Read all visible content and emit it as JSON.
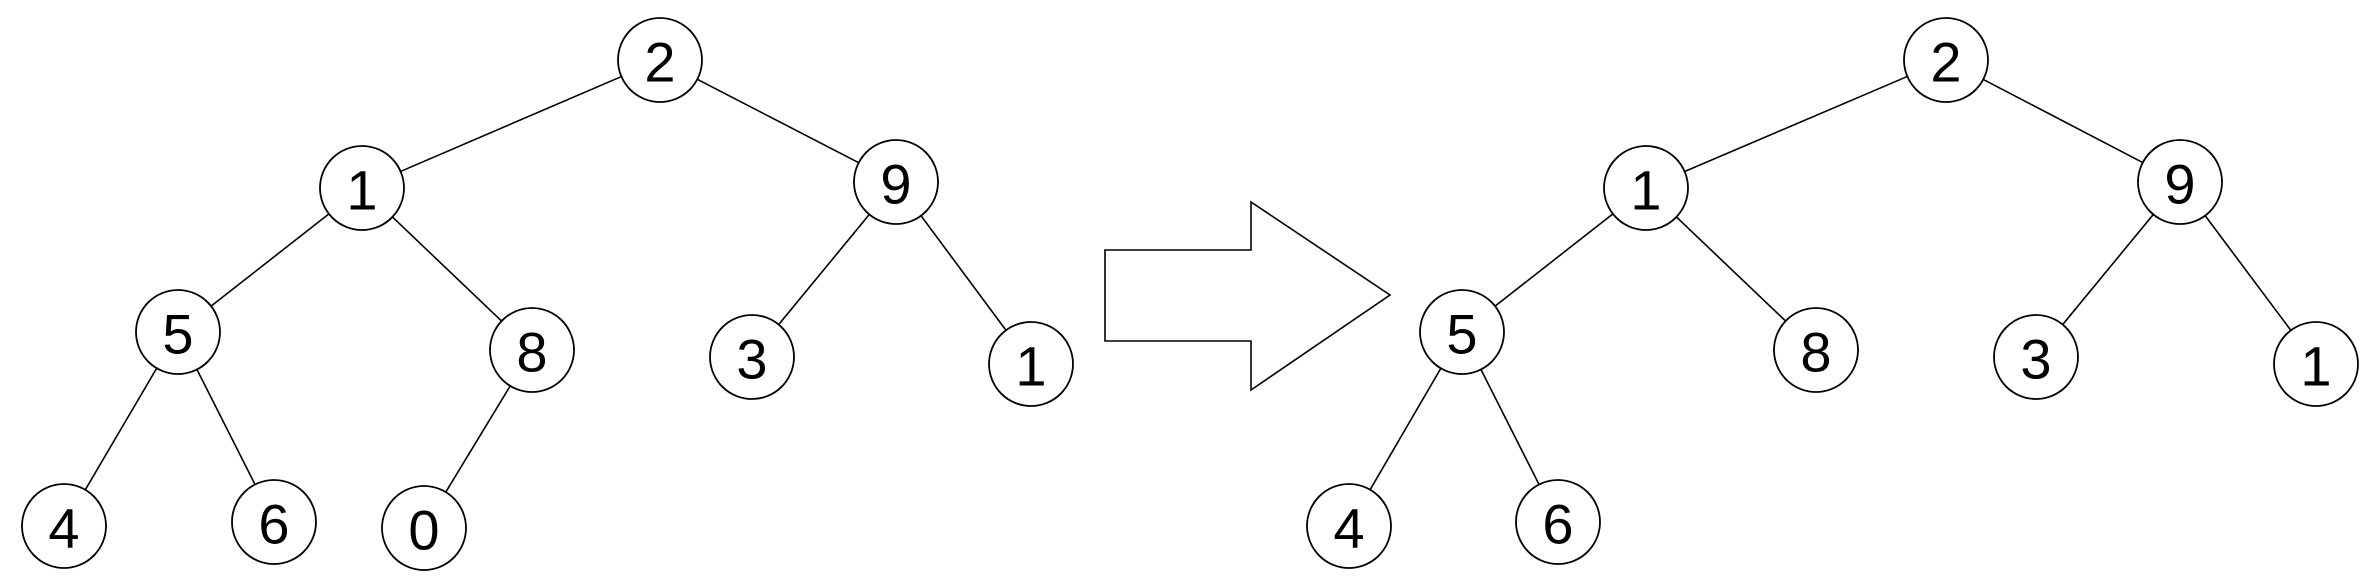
{
  "trees": [
    {
      "id": "before",
      "nodes": [
        {
          "id": "a",
          "label": "2"
        },
        {
          "id": "b",
          "label": "1"
        },
        {
          "id": "c",
          "label": "9"
        },
        {
          "id": "d",
          "label": "5"
        },
        {
          "id": "e",
          "label": "8"
        },
        {
          "id": "f",
          "label": "3"
        },
        {
          "id": "g",
          "label": "1"
        },
        {
          "id": "h",
          "label": "4"
        },
        {
          "id": "i",
          "label": "6"
        },
        {
          "id": "j",
          "label": "0"
        }
      ],
      "edges": [
        [
          "a",
          "b"
        ],
        [
          "a",
          "c"
        ],
        [
          "b",
          "d"
        ],
        [
          "b",
          "e"
        ],
        [
          "c",
          "f"
        ],
        [
          "c",
          "g"
        ],
        [
          "d",
          "h"
        ],
        [
          "d",
          "i"
        ],
        [
          "e",
          "j"
        ]
      ]
    },
    {
      "id": "after",
      "nodes": [
        {
          "id": "a",
          "label": "2"
        },
        {
          "id": "b",
          "label": "1"
        },
        {
          "id": "c",
          "label": "9"
        },
        {
          "id": "d",
          "label": "5"
        },
        {
          "id": "e",
          "label": "8"
        },
        {
          "id": "f",
          "label": "3"
        },
        {
          "id": "g",
          "label": "1"
        },
        {
          "id": "h",
          "label": "4"
        },
        {
          "id": "i",
          "label": "6"
        }
      ],
      "edges": [
        [
          "a",
          "b"
        ],
        [
          "a",
          "c"
        ],
        [
          "b",
          "d"
        ],
        [
          "b",
          "e"
        ],
        [
          "c",
          "f"
        ],
        [
          "c",
          "g"
        ],
        [
          "d",
          "h"
        ],
        [
          "d",
          "i"
        ]
      ]
    }
  ],
  "colors": {
    "stroke": "#000000",
    "fill": "#ffffff"
  }
}
